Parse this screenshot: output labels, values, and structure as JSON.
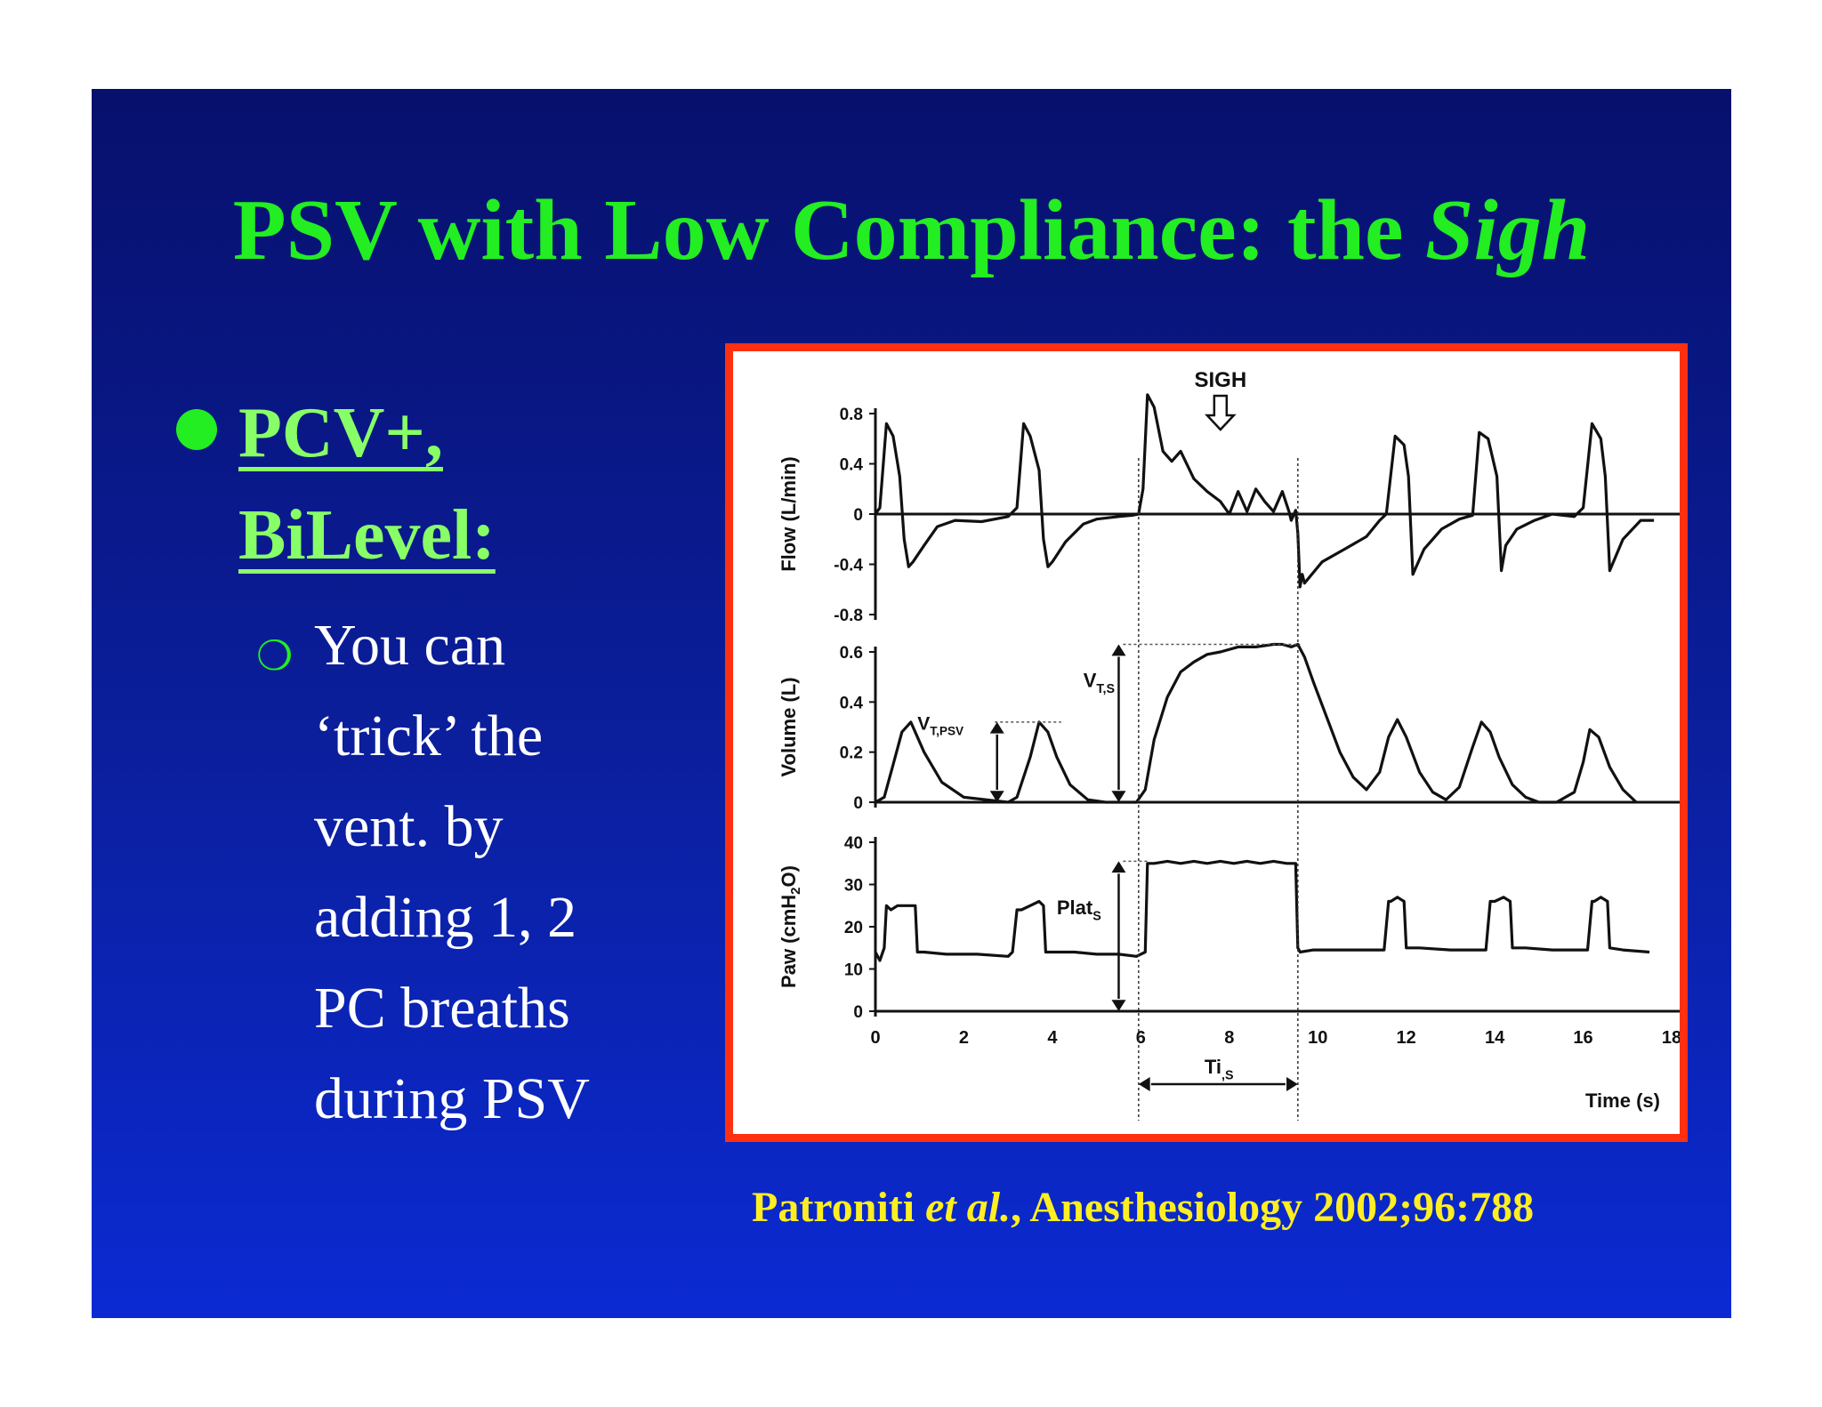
{
  "slide": {
    "title_main": "PSV with Low Compliance: the ",
    "title_italic": "Sigh",
    "bullet_lines": [
      "PCV+,",
      "BiLevel:"
    ],
    "sub_lines": [
      "You can",
      "‘trick’ the",
      "vent. by",
      "adding 1, 2",
      "PC breaths",
      "during PSV"
    ],
    "citation_a": "Patroniti ",
    "citation_b": "et al.",
    "citation_c": ", Anesthesiology 2002;96:788",
    "colors": {
      "title": "#22ee22",
      "bullet": "#88ff66",
      "text": "#ffffff",
      "citation": "#ffee22",
      "frame": "#ff3010"
    }
  },
  "chart_data": {
    "type": "line",
    "xlabel": "Time (s)",
    "xlim": [
      0,
      18
    ],
    "x_ticks": [
      0,
      2,
      4,
      6,
      8,
      10,
      12,
      14,
      16,
      18
    ],
    "annotations": {
      "sigh": "SIGH",
      "vt_s": "V",
      "vt_s_sub": "T,S",
      "vt_psv": "V",
      "vt_psv_sub": "T,PSV",
      "plat": "Plat",
      "plat_sub": "S",
      "ti": "Ti",
      "ti_sub": ",S"
    },
    "panels": [
      {
        "name": "flow",
        "ylabel": "Flow (L/min)",
        "ylim": [
          -0.8,
          0.8
        ],
        "y_ticks": [
          0.8,
          0.4,
          0,
          -0.4,
          -0.8
        ],
        "y_tick_labels": [
          "0.8",
          "0.4",
          "0",
          "-0.4",
          "-0.8"
        ],
        "x": [
          0,
          0.1,
          0.25,
          0.4,
          0.55,
          0.65,
          0.75,
          0.85,
          1.1,
          1.4,
          1.8,
          2.4,
          3.0,
          3.2,
          3.35,
          3.5,
          3.7,
          3.8,
          3.9,
          4.0,
          4.3,
          4.7,
          5.0,
          5.5,
          5.8,
          5.95,
          6.05,
          6.15,
          6.3,
          6.5,
          6.7,
          6.9,
          7.2,
          7.5,
          7.8,
          8.0,
          8.2,
          8.4,
          8.6,
          8.8,
          9.0,
          9.2,
          9.35,
          9.4,
          9.5,
          9.55,
          9.6,
          9.65,
          9.7,
          10.1,
          10.6,
          11.1,
          11.4,
          11.55,
          11.75,
          11.95,
          12.05,
          12.15,
          12.4,
          12.8,
          13.2,
          13.5,
          13.65,
          13.85,
          14.05,
          14.15,
          14.25,
          14.5,
          14.9,
          15.3,
          15.8,
          16.0,
          16.2,
          16.4,
          16.5,
          16.6,
          16.9,
          17.3,
          17.6
        ],
        "y": [
          0,
          0.05,
          0.72,
          0.62,
          0.3,
          -0.2,
          -0.42,
          -0.38,
          -0.25,
          -0.1,
          -0.05,
          -0.06,
          -0.02,
          0.05,
          0.72,
          0.62,
          0.35,
          -0.2,
          -0.42,
          -0.38,
          -0.22,
          -0.08,
          -0.04,
          -0.02,
          -0.01,
          0,
          0.2,
          0.95,
          0.85,
          0.5,
          0.42,
          0.5,
          0.28,
          0.18,
          0.1,
          0,
          0.18,
          0.02,
          0.2,
          0.1,
          0.02,
          0.18,
          0.02,
          -0.05,
          0.03,
          -0.15,
          -0.58,
          -0.48,
          -0.55,
          -0.38,
          -0.28,
          -0.18,
          -0.05,
          0,
          0.62,
          0.55,
          0.3,
          -0.48,
          -0.28,
          -0.12,
          -0.04,
          -0.01,
          0.65,
          0.6,
          0.3,
          -0.45,
          -0.25,
          -0.12,
          -0.05,
          0,
          -0.02,
          0.05,
          0.72,
          0.6,
          0.3,
          -0.45,
          -0.2,
          -0.05,
          -0.05
        ]
      },
      {
        "name": "volume",
        "ylabel": "Volume (L)",
        "ylim": [
          0,
          0.6
        ],
        "y_ticks": [
          0.6,
          0.4,
          0.2,
          0
        ],
        "y_tick_labels": [
          "0.6",
          "0.4",
          "0.2",
          "0"
        ],
        "x": [
          0,
          0.2,
          0.4,
          0.6,
          0.8,
          1.1,
          1.5,
          2.0,
          2.5,
          3.0,
          3.2,
          3.5,
          3.7,
          3.9,
          4.1,
          4.4,
          4.8,
          5.2,
          5.6,
          5.9,
          6.1,
          6.3,
          6.6,
          6.9,
          7.2,
          7.5,
          7.8,
          8.2,
          8.6,
          9.0,
          9.2,
          9.4,
          9.55,
          9.7,
          9.9,
          10.2,
          10.5,
          10.8,
          11.1,
          11.4,
          11.6,
          11.8,
          12.0,
          12.3,
          12.6,
          12.9,
          13.2,
          13.5,
          13.7,
          13.9,
          14.1,
          14.4,
          14.7,
          15.0,
          15.4,
          15.8,
          16.0,
          16.15,
          16.35,
          16.6,
          16.9,
          17.2
        ],
        "y": [
          0,
          0.02,
          0.15,
          0.28,
          0.32,
          0.2,
          0.08,
          0.02,
          0.01,
          0,
          0.02,
          0.18,
          0.32,
          0.28,
          0.18,
          0.07,
          0.01,
          0,
          0,
          0,
          0.05,
          0.25,
          0.42,
          0.52,
          0.56,
          0.59,
          0.6,
          0.62,
          0.62,
          0.63,
          0.63,
          0.62,
          0.63,
          0.58,
          0.48,
          0.34,
          0.2,
          0.1,
          0.05,
          0.12,
          0.26,
          0.33,
          0.26,
          0.12,
          0.04,
          0.01,
          0.06,
          0.22,
          0.32,
          0.28,
          0.18,
          0.07,
          0.02,
          0,
          0,
          0.04,
          0.16,
          0.29,
          0.26,
          0.14,
          0.05,
          0
        ]
      },
      {
        "name": "pressure",
        "ylabel": "Paw (cmH",
        "ylabel_sub": "2",
        "ylabel_end": "O)",
        "ylim": [
          0,
          40
        ],
        "y_ticks": [
          40,
          30,
          20,
          10,
          0
        ],
        "y_tick_labels": [
          "40",
          "30",
          "20",
          "10",
          "0"
        ],
        "x": [
          0,
          0.1,
          0.2,
          0.25,
          0.35,
          0.5,
          0.7,
          0.9,
          0.95,
          1.1,
          1.6,
          2.3,
          3.0,
          3.1,
          3.2,
          3.3,
          3.5,
          3.7,
          3.8,
          3.85,
          4.0,
          4.5,
          5.0,
          5.5,
          5.9,
          6.0,
          6.1,
          6.15,
          6.3,
          6.6,
          6.9,
          7.2,
          7.5,
          7.8,
          8.1,
          8.4,
          8.7,
          9.0,
          9.3,
          9.5,
          9.55,
          9.6,
          9.9,
          10.5,
          11.0,
          11.5,
          11.6,
          11.65,
          11.8,
          11.95,
          12.0,
          12.3,
          13.0,
          13.8,
          13.9,
          14.0,
          14.2,
          14.35,
          14.4,
          14.7,
          15.3,
          16.1,
          16.2,
          16.25,
          16.4,
          16.55,
          16.6,
          16.9,
          17.5
        ],
        "y": [
          14,
          12,
          15,
          25,
          24,
          25,
          25,
          25,
          14,
          14,
          13.5,
          13.5,
          13,
          14,
          24,
          24,
          25,
          26,
          25,
          14,
          14,
          14,
          13.5,
          13.5,
          13,
          13.5,
          14,
          35,
          35,
          35.5,
          35,
          35.5,
          35,
          35.5,
          35,
          35.5,
          35,
          35.5,
          35,
          35,
          15,
          14,
          14.5,
          14.5,
          14.5,
          14.5,
          26,
          26,
          27,
          26,
          15,
          15,
          14.5,
          14.5,
          26,
          26,
          27,
          26,
          15,
          15,
          14.5,
          14.5,
          26,
          26,
          27,
          26,
          15,
          14.5,
          14
        ]
      }
    ]
  }
}
